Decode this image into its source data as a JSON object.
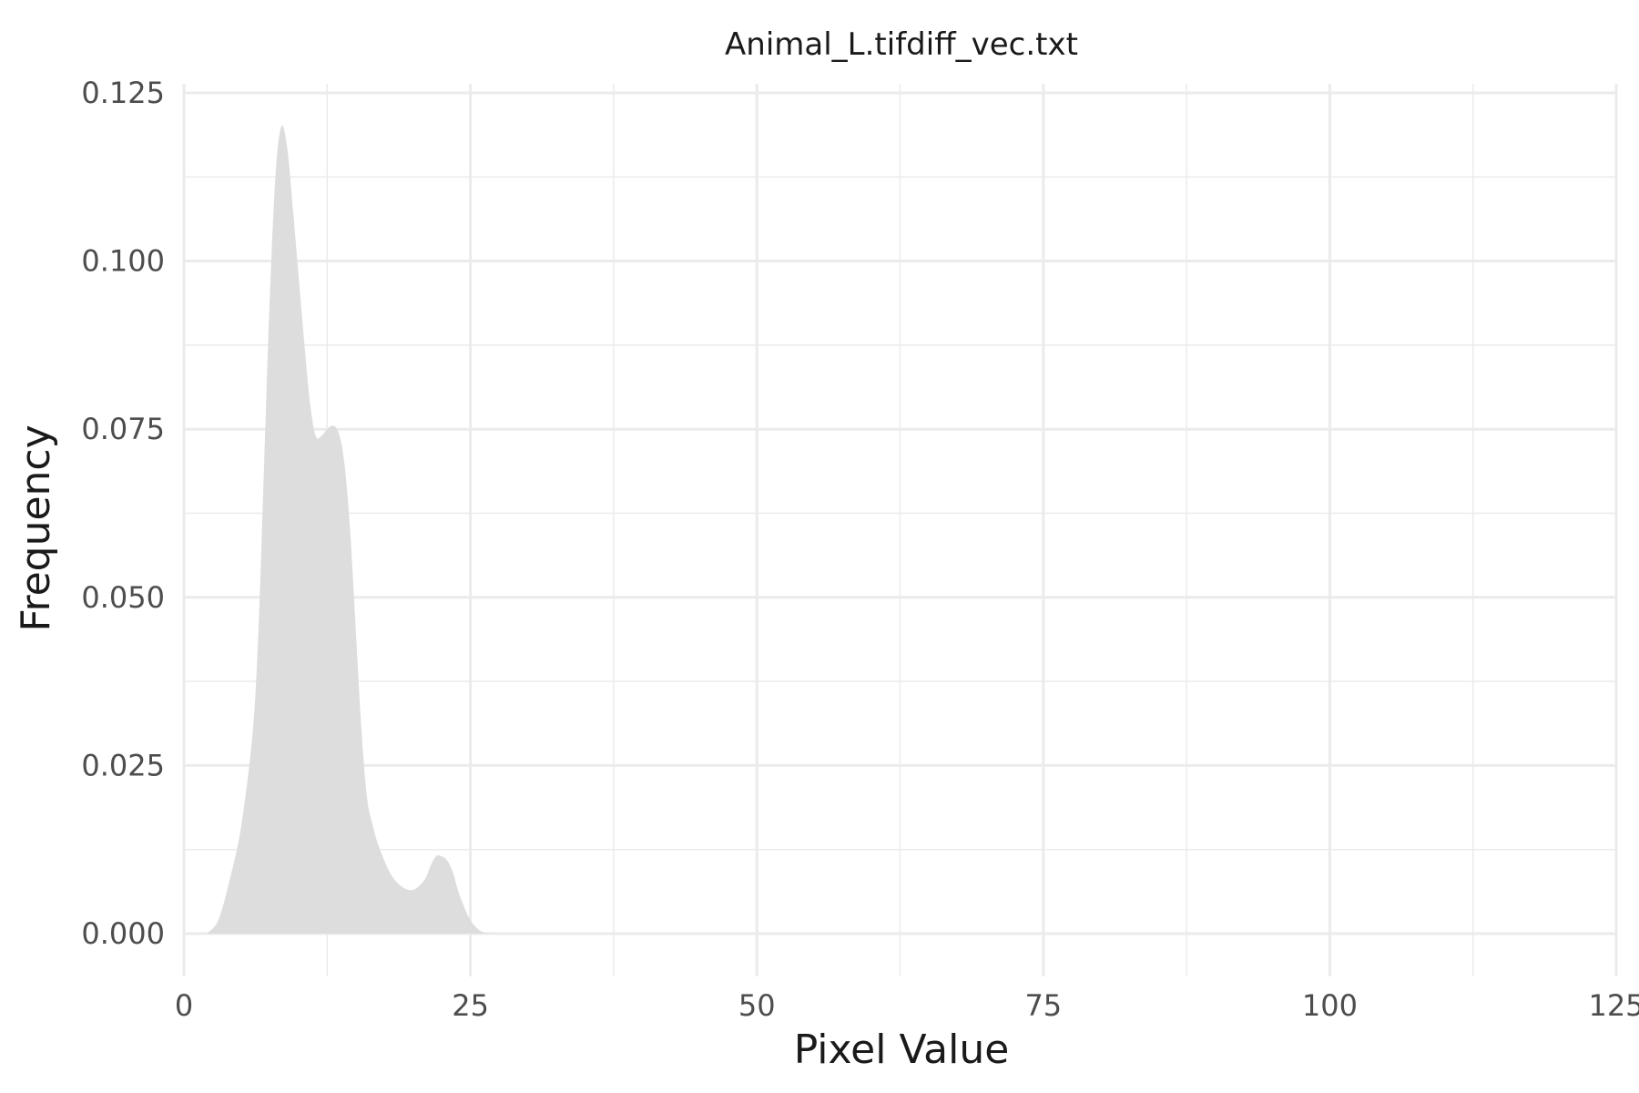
{
  "chart_data": {
    "type": "area",
    "title": "Animal_L.tifdiff_vec.txt",
    "xlabel": "Pixel Value",
    "ylabel": "Frequency",
    "xlim": [
      0,
      125
    ],
    "ylim": [
      0,
      0.125
    ],
    "x_ticks": [
      {
        "value": 0,
        "label": "0"
      },
      {
        "value": 25,
        "label": "25"
      },
      {
        "value": 50,
        "label": "50"
      },
      {
        "value": 75,
        "label": "75"
      },
      {
        "value": 100,
        "label": "100"
      },
      {
        "value": 125,
        "label": "125"
      }
    ],
    "y_ticks": [
      {
        "value": 0,
        "label": "0.000"
      },
      {
        "value": 0.025,
        "label": "0.025"
      },
      {
        "value": 0.05,
        "label": "0.050"
      },
      {
        "value": 0.075,
        "label": "0.075"
      },
      {
        "value": 0.1,
        "label": "0.100"
      },
      {
        "value": 0.125,
        "label": "0.125"
      }
    ],
    "grid": true,
    "legend": "none",
    "fill_color": "#dddddd",
    "grid_color": "#ebebeb",
    "series": [
      {
        "x": [
          2,
          3,
          4,
          5,
          6,
          6.5,
          7,
          7.5,
          8,
          8.5,
          9,
          9.5,
          10,
          10.5,
          11,
          11.5,
          12,
          12.5,
          13,
          13.5,
          14,
          14.5,
          15,
          15.5,
          16,
          16.5,
          17,
          18,
          19,
          20,
          21,
          21.5,
          22,
          22.5,
          23,
          23.5,
          24,
          25,
          26,
          27
        ],
        "y": [
          0.0,
          0.002,
          0.008,
          0.016,
          0.03,
          0.045,
          0.07,
          0.095,
          0.113,
          0.12,
          0.117,
          0.108,
          0.098,
          0.088,
          0.079,
          0.074,
          0.074,
          0.075,
          0.0755,
          0.0745,
          0.07,
          0.06,
          0.045,
          0.03,
          0.02,
          0.016,
          0.013,
          0.009,
          0.007,
          0.0065,
          0.008,
          0.01,
          0.0115,
          0.0115,
          0.0108,
          0.009,
          0.006,
          0.002,
          0.0003,
          0.0
        ]
      }
    ]
  }
}
